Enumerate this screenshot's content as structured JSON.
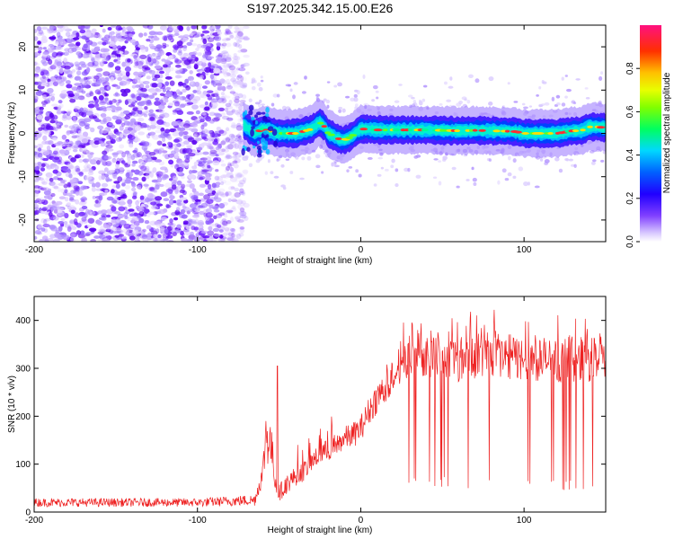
{
  "title": "S197.2025.342.15.00.E26",
  "chart_data": [
    {
      "type": "heatmap",
      "name": "spectrogram",
      "xlabel": "Height of straight line (km)",
      "ylabel": "Frequency (Hz)",
      "xlim": [
        -200,
        150
      ],
      "ylim": [
        -25,
        25
      ],
      "xticks": [
        -200,
        -100,
        0,
        100
      ],
      "xtick_labels": [
        "-200",
        "-100",
        "0",
        "100"
      ],
      "yticks": [
        -20,
        -10,
        0,
        10,
        20
      ],
      "ytick_labels": [
        "-20",
        "-10",
        "0",
        "10",
        "20"
      ],
      "noise_region_x": [
        -200,
        -70
      ],
      "signal_curve": {
        "x": [
          -72,
          -65,
          -60,
          -55,
          -50,
          -45,
          -40,
          -35,
          -30,
          -27,
          -25,
          -22,
          -20,
          -17,
          -15,
          -12,
          -10,
          -7,
          -5,
          -2,
          0,
          5,
          10,
          20,
          30,
          40,
          50,
          60,
          70,
          80,
          90,
          95,
          100,
          105,
          110,
          115,
          120,
          125,
          130,
          135,
          140,
          145,
          150
        ],
        "y": [
          2,
          0,
          1,
          0.5,
          0,
          0,
          0,
          0.5,
          1,
          2,
          2.5,
          1.5,
          0,
          -0.5,
          -1,
          -1.5,
          -1.5,
          -1,
          -0.5,
          0.5,
          1,
          1,
          0.8,
          0.8,
          0.8,
          0.8,
          0.7,
          0.6,
          0.7,
          0.6,
          0.5,
          0.4,
          0,
          0,
          0,
          0,
          0,
          0.3,
          0.6,
          0.6,
          1.5,
          1.5,
          1.3
        ]
      }
    },
    {
      "type": "line",
      "name": "snr",
      "xlabel": "Height of straight line (km)",
      "ylabel": "SNR (10 * v/v)",
      "xlim": [
        -200,
        150
      ],
      "ylim": [
        0,
        450
      ],
      "xticks": [
        -200,
        -100,
        0,
        100
      ],
      "xtick_labels": [
        "-200",
        "-100",
        "0",
        "100"
      ],
      "yticks": [
        0,
        100,
        200,
        300,
        400
      ],
      "ytick_labels": [
        "0",
        "100",
        "200",
        "300",
        "400"
      ],
      "color": "#ee2222",
      "envelope": {
        "x": [
          -200,
          -150,
          -100,
          -65,
          -60,
          -58,
          -55,
          -52,
          -50,
          -45,
          -40,
          -35,
          -30,
          -25,
          -20,
          -15,
          -10,
          -5,
          0,
          5,
          10,
          15,
          20,
          25,
          30,
          40,
          50,
          60,
          70,
          80,
          90,
          100,
          110,
          120,
          130,
          140,
          150
        ],
        "base": [
          20,
          20,
          20,
          25,
          80,
          170,
          140,
          60,
          40,
          60,
          75,
          85,
          105,
          120,
          130,
          140,
          155,
          160,
          175,
          210,
          240,
          260,
          290,
          310,
          330,
          330,
          325,
          320,
          325,
          330,
          325,
          320,
          320,
          315,
          320,
          320,
          320
        ],
        "spread": [
          15,
          15,
          15,
          20,
          40,
          120,
          80,
          40,
          30,
          35,
          35,
          35,
          35,
          35,
          40,
          40,
          40,
          45,
          45,
          50,
          55,
          60,
          70,
          70,
          75,
          80,
          80,
          80,
          80,
          80,
          80,
          80,
          80,
          80,
          80,
          80,
          80
        ],
        "peak_x": -51,
        "peak_y": 305
      }
    }
  ],
  "colorbar": {
    "label": "Normalized spectral amplitude",
    "range": [
      0,
      1
    ],
    "ticks": [
      0.0,
      0.2,
      0.4,
      0.6,
      0.8
    ],
    "tick_labels": [
      "0.0",
      "0.2",
      "0.4",
      "0.6",
      "0.8"
    ],
    "colors": [
      "#ffffff",
      "#a070ff",
      "#3000ff",
      "#0050ff",
      "#00e0ff",
      "#00ff40",
      "#c0ff00",
      "#ffd000",
      "#ff4020",
      "#ff1080"
    ]
  }
}
